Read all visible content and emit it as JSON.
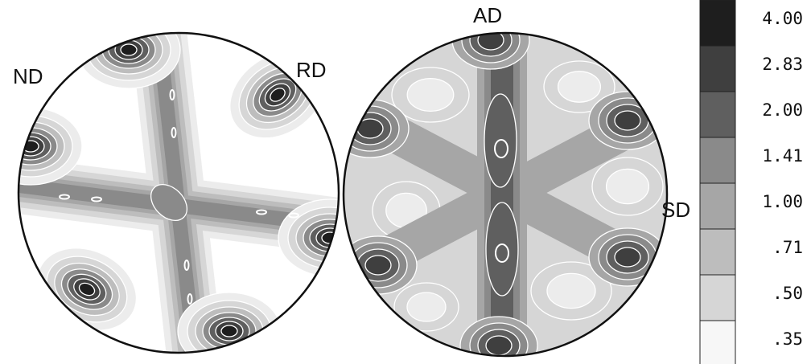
{
  "figure": {
    "left_pole_figure": {
      "labels": {
        "top_left": "ND",
        "top_right": "RD"
      }
    },
    "right_pole_figure": {
      "labels": {
        "top": "AD",
        "right": "SD"
      }
    },
    "legend": {
      "levels": [
        {
          "value": "4.00",
          "color": "#1e1e1e"
        },
        {
          "value": "2.83",
          "color": "#3f3f3f"
        },
        {
          "value": "2.00",
          "color": "#5f5f5f"
        },
        {
          "value": "1.41",
          "color": "#8a8a8a"
        },
        {
          "value": "1.00",
          "color": "#a6a6a6"
        },
        {
          "value": ".71",
          "color": "#bdbdbd"
        },
        {
          "value": ".50",
          "color": "#d6d6d6"
        },
        {
          "value": ".35",
          "color": "#f7f7f7"
        }
      ]
    },
    "shade_palette": [
      "#ffffff",
      "#ececec",
      "#d6d6d6",
      "#bdbdbd",
      "#a6a6a6",
      "#8a8a8a",
      "#5f5f5f",
      "#3f3f3f",
      "#1e1e1e"
    ]
  }
}
